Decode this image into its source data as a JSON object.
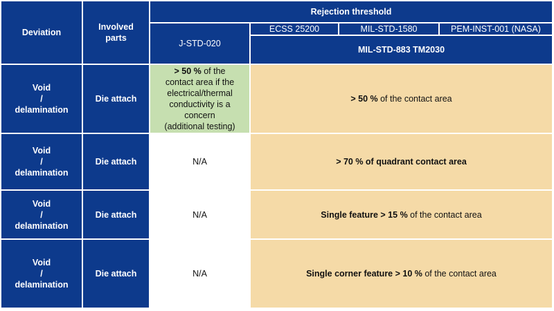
{
  "header": {
    "deviation": "Deviation",
    "involved_parts_line1": "Involved",
    "involved_parts_line2": "parts",
    "rejection_threshold": "Rejection threshold",
    "standards": {
      "jstd": "J-STD-020",
      "ecss": "ECSS 25200",
      "milstd1580": "MIL-STD-1580",
      "pem": "PEM-INST-001 (NASA)",
      "mil883": "MIL-STD-883 TM2030"
    }
  },
  "rows": [
    {
      "deviation": [
        "Void",
        "/",
        "delamination"
      ],
      "part": "Die attach",
      "jstd_lines": [
        {
          "bold": "> 50 %",
          "rest": " of the"
        },
        {
          "bold": "",
          "rest": "contact area if the"
        },
        {
          "bold": "",
          "rest": "electrical/thermal"
        },
        {
          "bold": "",
          "rest": "conductivity is a"
        },
        {
          "bold": "",
          "rest": "concern"
        },
        {
          "bold": "",
          "rest": "(additional testing)"
        }
      ],
      "other_bold": "> 50  %",
      "other_rest": " of the contact area"
    },
    {
      "deviation": [
        "Void",
        "/",
        "delamination"
      ],
      "part": "Die attach",
      "jstd": "N/A",
      "other_bold": "> 70 % of quadrant contact area",
      "other_rest": ""
    },
    {
      "deviation": [
        "Void",
        "/",
        "delamination"
      ],
      "part": "Die attach",
      "jstd": "N/A",
      "other_bold": "Single feature > 15 %",
      "other_rest": " of the contact area"
    },
    {
      "deviation": [
        "Void",
        "/",
        "delamination"
      ],
      "part": "Die attach",
      "jstd": "N/A",
      "other_bold": "Single corner feature > 10 %",
      "other_rest": " of the contact area"
    }
  ]
}
